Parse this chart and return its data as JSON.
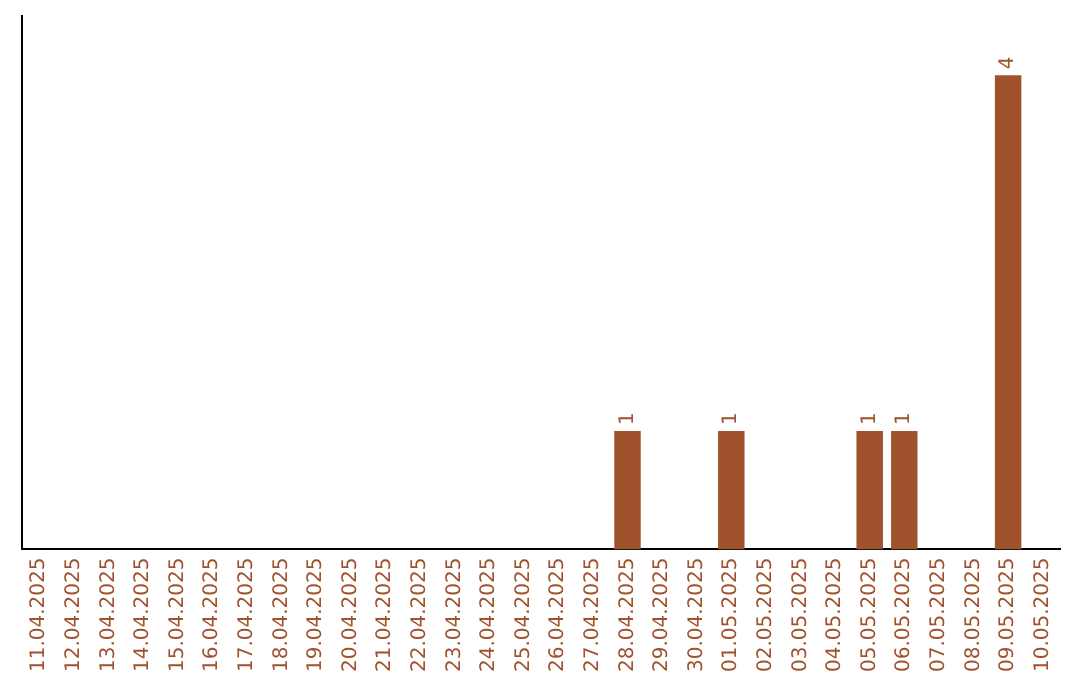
{
  "chart_data": {
    "type": "bar",
    "categories": [
      "11.04.2025",
      "12.04.2025",
      "13.04.2025",
      "14.04.2025",
      "15.04.2025",
      "16.04.2025",
      "17.04.2025",
      "18.04.2025",
      "19.04.2025",
      "20.04.2025",
      "21.04.2025",
      "22.04.2025",
      "23.04.2025",
      "24.04.2025",
      "25.04.2025",
      "26.04.2025",
      "27.04.2025",
      "28.04.2025",
      "29.04.2025",
      "30.04.2025",
      "01.05.2025",
      "02.05.2025",
      "03.05.2025",
      "04.05.2025",
      "05.05.2025",
      "06.05.2025",
      "07.05.2025",
      "08.05.2025",
      "09.05.2025",
      "10.05.2025"
    ],
    "values": [
      null,
      null,
      null,
      null,
      null,
      null,
      null,
      null,
      null,
      null,
      null,
      null,
      null,
      null,
      null,
      null,
      null,
      1,
      null,
      null,
      1,
      null,
      null,
      null,
      1,
      1,
      null,
      null,
      4,
      null
    ],
    "data_labels": true,
    "color": "#a0522d",
    "tick_labels": "x",
    "grid": false,
    "legend": false
  }
}
